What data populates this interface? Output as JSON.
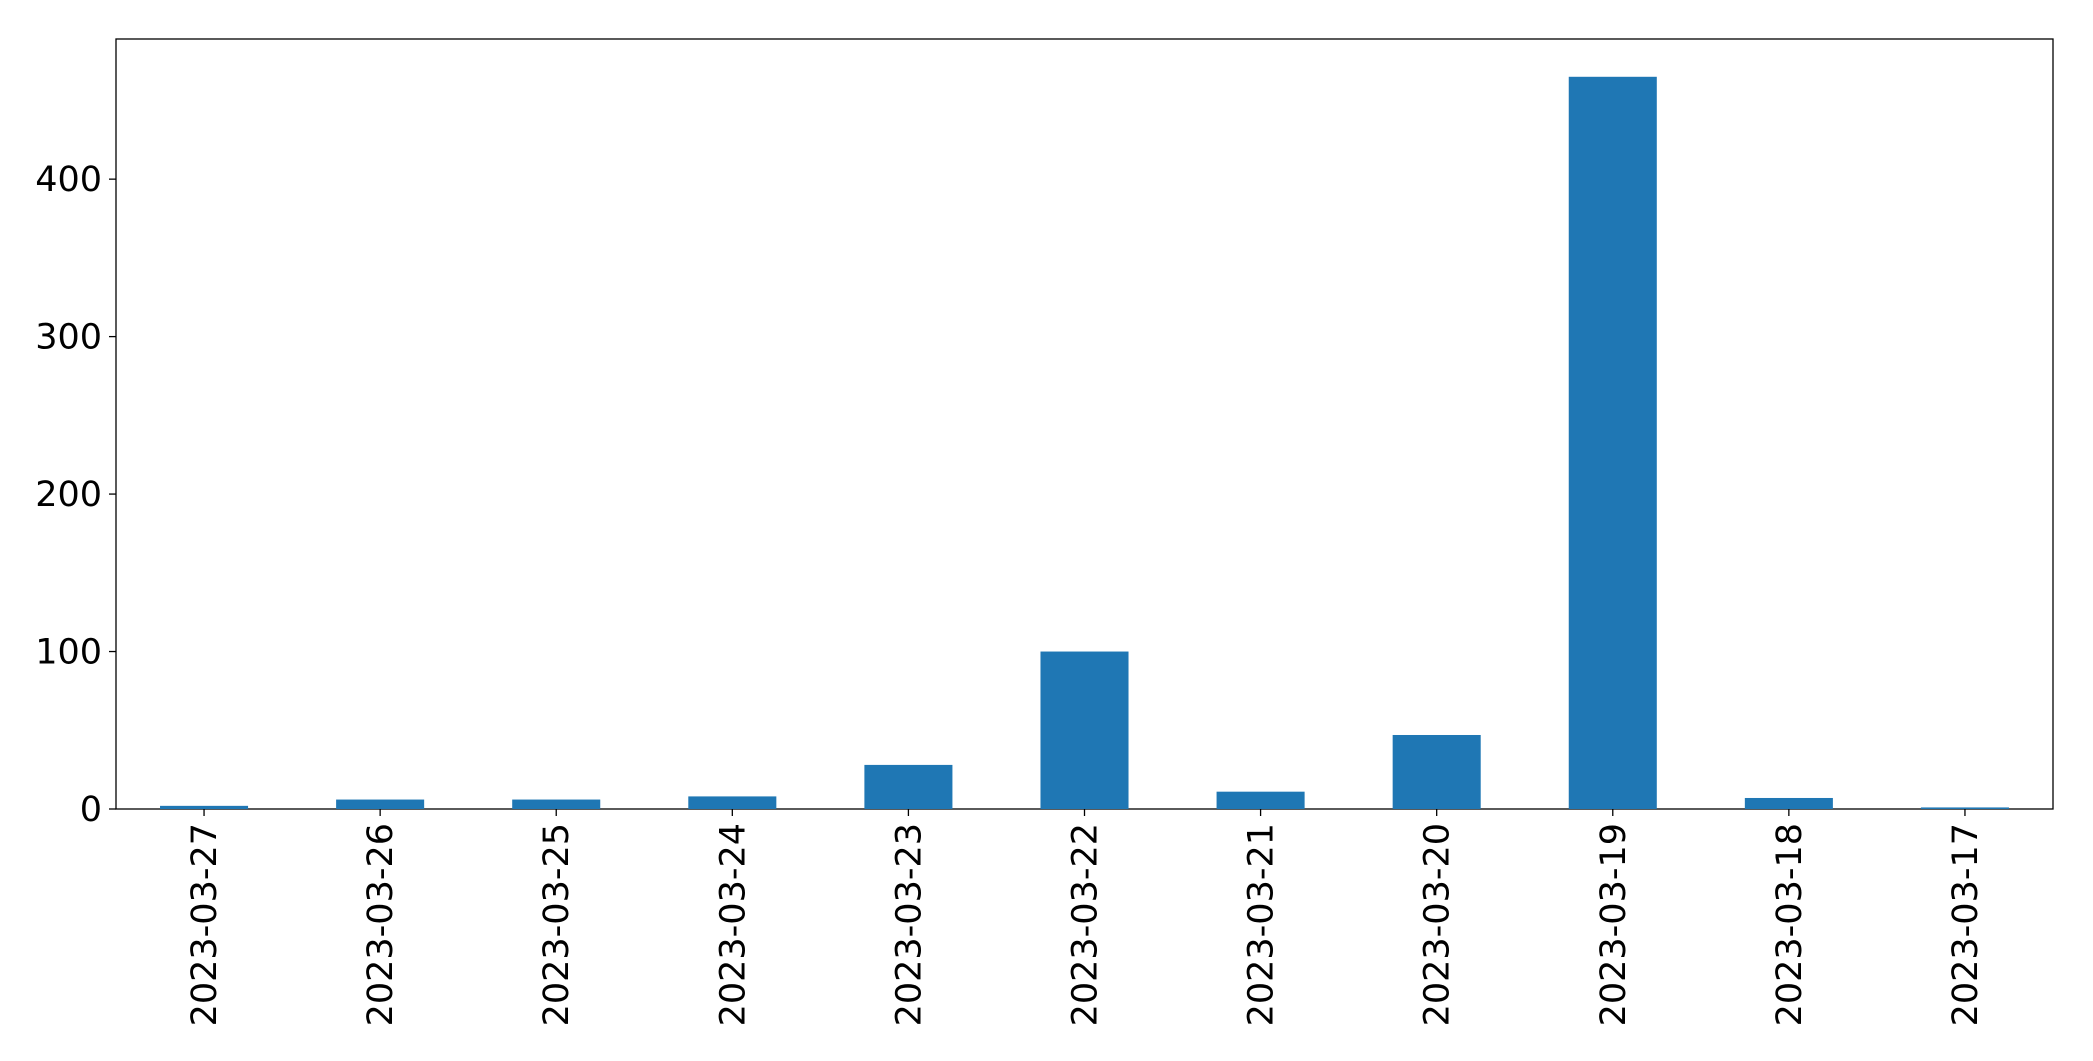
{
  "chart_data": {
    "type": "bar",
    "categories": [
      "2023-03-27",
      "2023-03-26",
      "2023-03-25",
      "2023-03-24",
      "2023-03-23",
      "2023-03-22",
      "2023-03-21",
      "2023-03-20",
      "2023-03-19",
      "2023-03-18",
      "2023-03-17"
    ],
    "values": [
      2,
      6,
      6,
      8,
      28,
      100,
      11,
      47,
      465,
      7,
      1
    ],
    "color": "#1f77b4",
    "ylim": [
      0,
      489
    ],
    "yticks": [
      0,
      100,
      200,
      300,
      400
    ],
    "grid": false
  }
}
